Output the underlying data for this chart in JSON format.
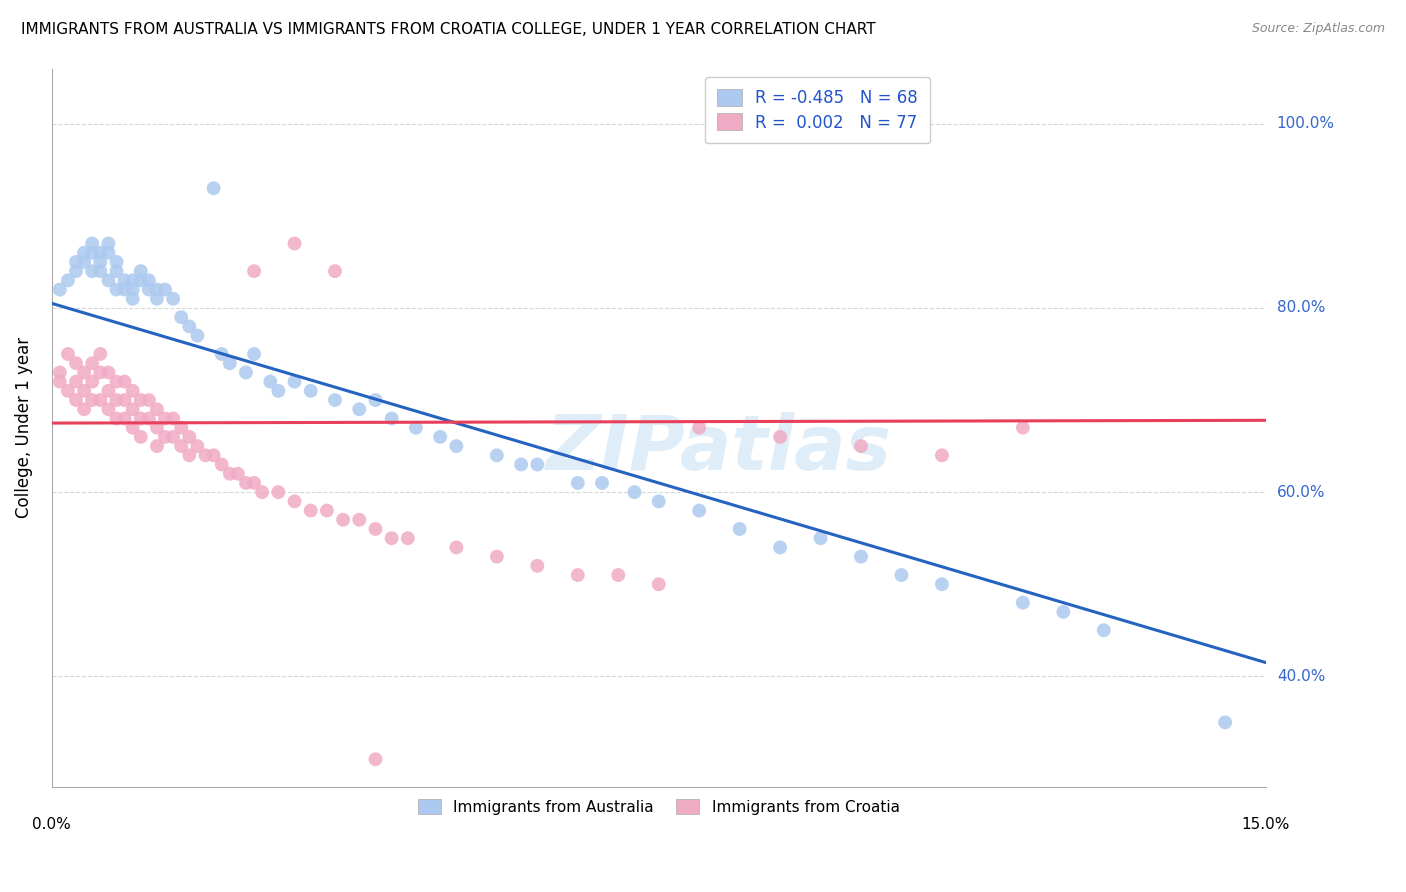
{
  "title": "IMMIGRANTS FROM AUSTRALIA VS IMMIGRANTS FROM CROATIA COLLEGE, UNDER 1 YEAR CORRELATION CHART",
  "source": "Source: ZipAtlas.com",
  "ylabel": "College, Under 1 year",
  "yaxis_ticks": [
    "40.0%",
    "60.0%",
    "80.0%",
    "100.0%"
  ],
  "yaxis_tick_vals": [
    0.4,
    0.6,
    0.8,
    1.0
  ],
  "xmin": 0.0,
  "xmax": 0.15,
  "ymin": 0.28,
  "ymax": 1.06,
  "legend_r_australia": "-0.485",
  "legend_n_australia": "68",
  "legend_r_croatia": "0.002",
  "legend_n_croatia": "77",
  "australia_color": "#adc9ef",
  "croatia_color": "#f0abc4",
  "trend_australia_color": "#2563c0",
  "trend_croatia_color": "#e8405a",
  "aus_trend_x0": 0.0,
  "aus_trend_y0": 0.805,
  "aus_trend_x1": 0.15,
  "aus_trend_y1": 0.415,
  "cro_trend_x0": 0.0,
  "cro_trend_x1": 0.15,
  "cro_trend_y0": 0.675,
  "cro_trend_y1": 0.678,
  "watermark": "ZIPatlas",
  "background_color": "#ffffff",
  "grid_color": "#d8d8d8",
  "aus_scatter_x": [
    0.001,
    0.002,
    0.003,
    0.003,
    0.004,
    0.004,
    0.005,
    0.005,
    0.005,
    0.006,
    0.006,
    0.006,
    0.007,
    0.007,
    0.007,
    0.008,
    0.008,
    0.008,
    0.009,
    0.009,
    0.01,
    0.01,
    0.01,
    0.011,
    0.011,
    0.012,
    0.012,
    0.013,
    0.013,
    0.014,
    0.015,
    0.016,
    0.017,
    0.018,
    0.02,
    0.021,
    0.022,
    0.024,
    0.025,
    0.027,
    0.028,
    0.03,
    0.032,
    0.035,
    0.038,
    0.04,
    0.042,
    0.045,
    0.048,
    0.05,
    0.055,
    0.058,
    0.06,
    0.065,
    0.068,
    0.072,
    0.075,
    0.08,
    0.085,
    0.09,
    0.095,
    0.1,
    0.105,
    0.11,
    0.12,
    0.125,
    0.13,
    0.145
  ],
  "aus_scatter_y": [
    0.82,
    0.83,
    0.84,
    0.85,
    0.86,
    0.85,
    0.87,
    0.86,
    0.84,
    0.86,
    0.85,
    0.84,
    0.87,
    0.86,
    0.83,
    0.85,
    0.84,
    0.82,
    0.83,
    0.82,
    0.83,
    0.82,
    0.81,
    0.84,
    0.83,
    0.83,
    0.82,
    0.82,
    0.81,
    0.82,
    0.81,
    0.79,
    0.78,
    0.77,
    0.93,
    0.75,
    0.74,
    0.73,
    0.75,
    0.72,
    0.71,
    0.72,
    0.71,
    0.7,
    0.69,
    0.7,
    0.68,
    0.67,
    0.66,
    0.65,
    0.64,
    0.63,
    0.63,
    0.61,
    0.61,
    0.6,
    0.59,
    0.58,
    0.56,
    0.54,
    0.55,
    0.53,
    0.51,
    0.5,
    0.48,
    0.47,
    0.45,
    0.35
  ],
  "cro_scatter_x": [
    0.001,
    0.001,
    0.002,
    0.002,
    0.003,
    0.003,
    0.003,
    0.004,
    0.004,
    0.004,
    0.005,
    0.005,
    0.005,
    0.006,
    0.006,
    0.006,
    0.007,
    0.007,
    0.007,
    0.008,
    0.008,
    0.008,
    0.009,
    0.009,
    0.009,
    0.01,
    0.01,
    0.01,
    0.011,
    0.011,
    0.011,
    0.012,
    0.012,
    0.013,
    0.013,
    0.013,
    0.014,
    0.014,
    0.015,
    0.015,
    0.016,
    0.016,
    0.017,
    0.017,
    0.018,
    0.019,
    0.02,
    0.021,
    0.022,
    0.023,
    0.024,
    0.025,
    0.026,
    0.028,
    0.03,
    0.032,
    0.034,
    0.036,
    0.038,
    0.04,
    0.042,
    0.044,
    0.05,
    0.055,
    0.06,
    0.065,
    0.07,
    0.075,
    0.08,
    0.09,
    0.1,
    0.11,
    0.12,
    0.025,
    0.03,
    0.035,
    0.04
  ],
  "cro_scatter_y": [
    0.73,
    0.72,
    0.75,
    0.71,
    0.74,
    0.72,
    0.7,
    0.73,
    0.71,
    0.69,
    0.74,
    0.72,
    0.7,
    0.75,
    0.73,
    0.7,
    0.73,
    0.71,
    0.69,
    0.72,
    0.7,
    0.68,
    0.72,
    0.7,
    0.68,
    0.71,
    0.69,
    0.67,
    0.7,
    0.68,
    0.66,
    0.7,
    0.68,
    0.69,
    0.67,
    0.65,
    0.68,
    0.66,
    0.68,
    0.66,
    0.67,
    0.65,
    0.66,
    0.64,
    0.65,
    0.64,
    0.64,
    0.63,
    0.62,
    0.62,
    0.61,
    0.61,
    0.6,
    0.6,
    0.59,
    0.58,
    0.58,
    0.57,
    0.57,
    0.56,
    0.55,
    0.55,
    0.54,
    0.53,
    0.52,
    0.51,
    0.51,
    0.5,
    0.67,
    0.66,
    0.65,
    0.64,
    0.67,
    0.84,
    0.87,
    0.84,
    0.31
  ]
}
